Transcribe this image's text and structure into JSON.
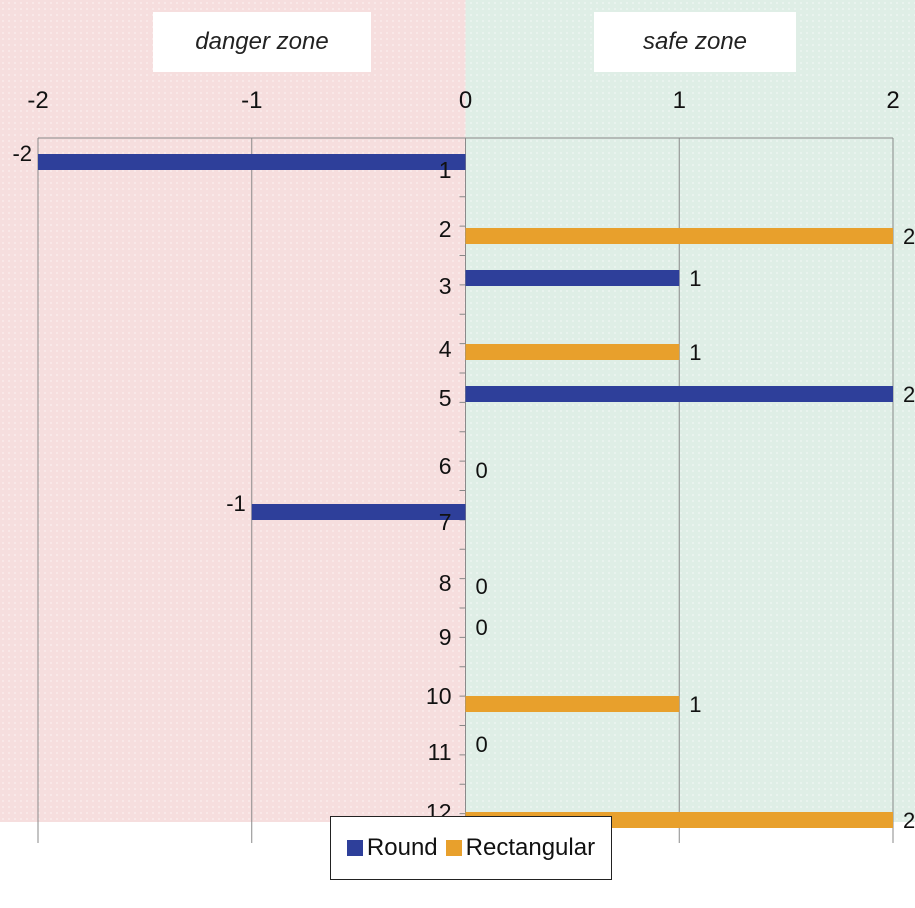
{
  "chart_data": {
    "type": "bar",
    "orientation": "horizontal",
    "xlim": [
      -2,
      2
    ],
    "x_ticks": [
      "-2",
      "-1",
      "0",
      "1",
      "2"
    ],
    "categories": [
      "1",
      "2",
      "3",
      "4",
      "5",
      "6",
      "7",
      "8",
      "9",
      "10",
      "11",
      "12"
    ],
    "zones": [
      {
        "label": "danger zone",
        "range": [
          -2,
          0
        ],
        "color": "#f6dede"
      },
      {
        "label": "safe zone",
        "range": [
          0,
          2
        ],
        "color": "#dfeee6"
      }
    ],
    "series": [
      {
        "name": "Round",
        "color": "#2e3f9a"
      },
      {
        "name": "Rectangular",
        "color": "#e8a02c"
      }
    ],
    "bars": [
      {
        "category": "1",
        "series": "Round",
        "value": -2,
        "label": "-2"
      },
      {
        "category": "2",
        "series": "Rectangular",
        "value": 2,
        "label": "2"
      },
      {
        "category": "3",
        "series": "Round",
        "value": 1,
        "label": "1"
      },
      {
        "category": "4",
        "series": "Rectangular",
        "value": 1,
        "label": "1"
      },
      {
        "category": "5",
        "series": "Round",
        "value": 2,
        "label": "2"
      },
      {
        "category": "6",
        "series": "",
        "value": 0,
        "label": "0"
      },
      {
        "category": "7",
        "series": "Round",
        "value": -1,
        "label": "-1"
      },
      {
        "category": "8",
        "series": "",
        "value": 0,
        "label": "0"
      },
      {
        "category": "9",
        "series": "",
        "value": 0,
        "label": "0"
      },
      {
        "category": "10",
        "series": "Rectangular",
        "value": 1,
        "label": "1"
      },
      {
        "category": "11",
        "series": "",
        "value": 0,
        "label": "0"
      },
      {
        "category": "12",
        "series": "Rectangular",
        "value": 2,
        "label": "2"
      }
    ],
    "grid": true,
    "legend_position": "bottom-center"
  }
}
